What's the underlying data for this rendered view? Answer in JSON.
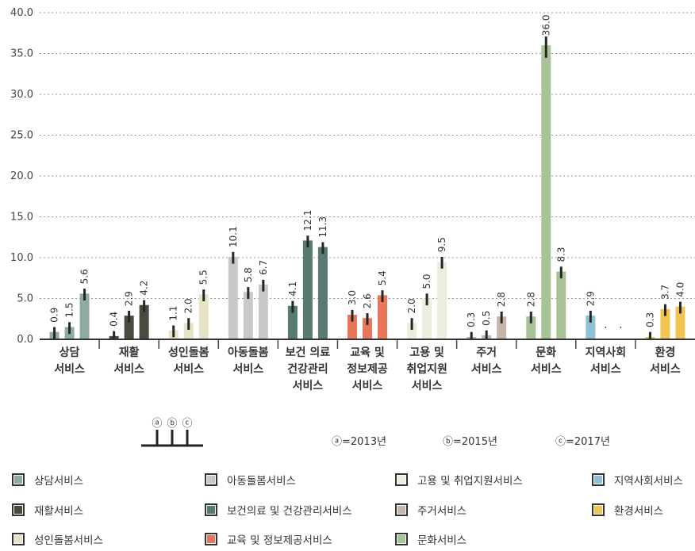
{
  "chart_data": {
    "type": "bar",
    "ylim": [
      0,
      40
    ],
    "yticks": [
      "0.0",
      "5.0",
      "10.0",
      "15.0",
      "20.0",
      "25.0",
      "30.0",
      "35.0",
      "40.0"
    ],
    "grid": true,
    "years": [
      "2013",
      "2015",
      "2017"
    ],
    "year_markers": [
      "ⓐ",
      "ⓑ",
      "ⓒ"
    ],
    "year_notes": [
      "ⓐ=2013년",
      "ⓑ=2015년",
      "ⓒ=2017년"
    ],
    "categories": [
      {
        "label": [
          "상담",
          "서비스"
        ],
        "color": "#8eaaa3",
        "values": [
          0.9,
          1.5,
          5.6
        ],
        "value_labels": [
          "0.9",
          "1.5",
          "5.6"
        ]
      },
      {
        "label": [
          "재활",
          "서비스"
        ],
        "color": "#4a4a40",
        "values": [
          0.4,
          2.9,
          4.2
        ],
        "value_labels": [
          "0.4",
          "2.9",
          "4.2"
        ]
      },
      {
        "label": [
          "성인돌봄",
          "서비스"
        ],
        "color": "#e6e3c6",
        "values": [
          1.1,
          2.0,
          5.5
        ],
        "value_labels": [
          "1.1",
          "2.0",
          "5.5"
        ]
      },
      {
        "label": [
          "아동돌봄",
          "서비스"
        ],
        "color": "#c8c8c8",
        "values": [
          10.1,
          5.8,
          6.7
        ],
        "value_labels": [
          "10.1",
          "5.8",
          "6.7"
        ]
      },
      {
        "label": [
          "보건 의료",
          "건강관리",
          "서비스"
        ],
        "color": "#597a72",
        "values": [
          4.1,
          12.1,
          11.3
        ],
        "value_labels": [
          "4.1",
          "12.1",
          "11.3"
        ]
      },
      {
        "label": [
          "교육 및",
          "정보제공",
          "서비스"
        ],
        "color": "#e8765a",
        "values": [
          3.0,
          2.6,
          5.4
        ],
        "value_labels": [
          "3.0",
          "2.6",
          "5.4"
        ]
      },
      {
        "label": [
          "고용 및",
          "취업지원",
          "서비스"
        ],
        "color": "#ededdf",
        "values": [
          2.0,
          5.0,
          9.5
        ],
        "value_labels": [
          "2.0",
          "5.0",
          "9.5"
        ]
      },
      {
        "label": [
          "주거",
          "서비스"
        ],
        "color": "#c6b5aa",
        "values": [
          0.3,
          0.5,
          2.8
        ],
        "value_labels": [
          "0.3",
          "0.5",
          "2.8"
        ]
      },
      {
        "label": [
          "문화",
          "서비스"
        ],
        "color": "#a8c497",
        "values": [
          2.8,
          36.0,
          8.3
        ],
        "value_labels": [
          "2.8",
          "36.0",
          "8.3"
        ]
      },
      {
        "label": [
          "지역사회",
          "서비스"
        ],
        "color": "#8fc0d6",
        "values": [
          2.9,
          null,
          null
        ],
        "value_labels": [
          "2.9",
          "",
          ""
        ]
      },
      {
        "label": [
          "환경",
          "서비스"
        ],
        "color": "#f0c450",
        "values": [
          0.3,
          3.7,
          4.0
        ],
        "value_labels": [
          "0.3",
          "3.7",
          "4.0"
        ]
      }
    ]
  },
  "legend": [
    {
      "label": "상담서비스",
      "color": "#8eaaa3"
    },
    {
      "label": "재활서비스",
      "color": "#4a4a40"
    },
    {
      "label": "성인돌봄서비스",
      "color": "#e6e3c6"
    },
    {
      "label": "아동돌봄서비스",
      "color": "#c8c8c8"
    },
    {
      "label": "보건의료 및 건강관리서비스",
      "color": "#597a72"
    },
    {
      "label": "교육 및 정보제공서비스",
      "color": "#e8765a"
    },
    {
      "label": "고용 및 취업지원서비스",
      "color": "#ededdf"
    },
    {
      "label": "주거서비스",
      "color": "#c6b5aa"
    },
    {
      "label": "문화서비스",
      "color": "#a8c497"
    },
    {
      "label": "지역사회서비스",
      "color": "#8fc0d6"
    },
    {
      "label": "환경서비스",
      "color": "#f0c450"
    }
  ]
}
